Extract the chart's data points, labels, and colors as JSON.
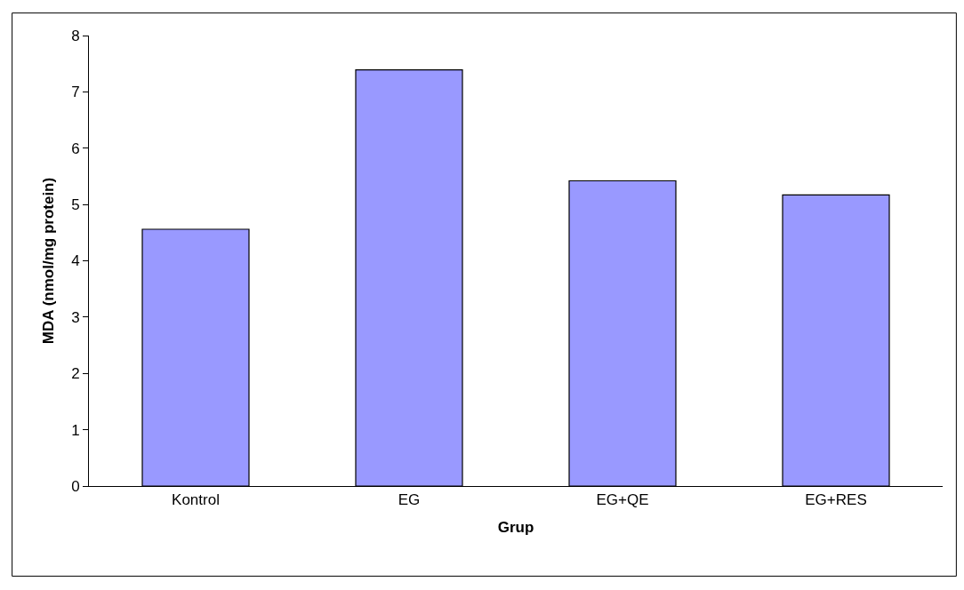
{
  "chart_data": {
    "type": "bar",
    "xlabel": "Grup",
    "ylabel": "MDA (nmol/mg protein)",
    "categories": [
      "Kontrol",
      "EG",
      "EG+QE",
      "EG+RES"
    ],
    "values": [
      4.56,
      7.39,
      5.42,
      5.17
    ],
    "color": "#9999ff",
    "ylim": [
      0,
      8
    ],
    "yticks": [
      0,
      1,
      2,
      3,
      4,
      5,
      6,
      7,
      8
    ]
  }
}
